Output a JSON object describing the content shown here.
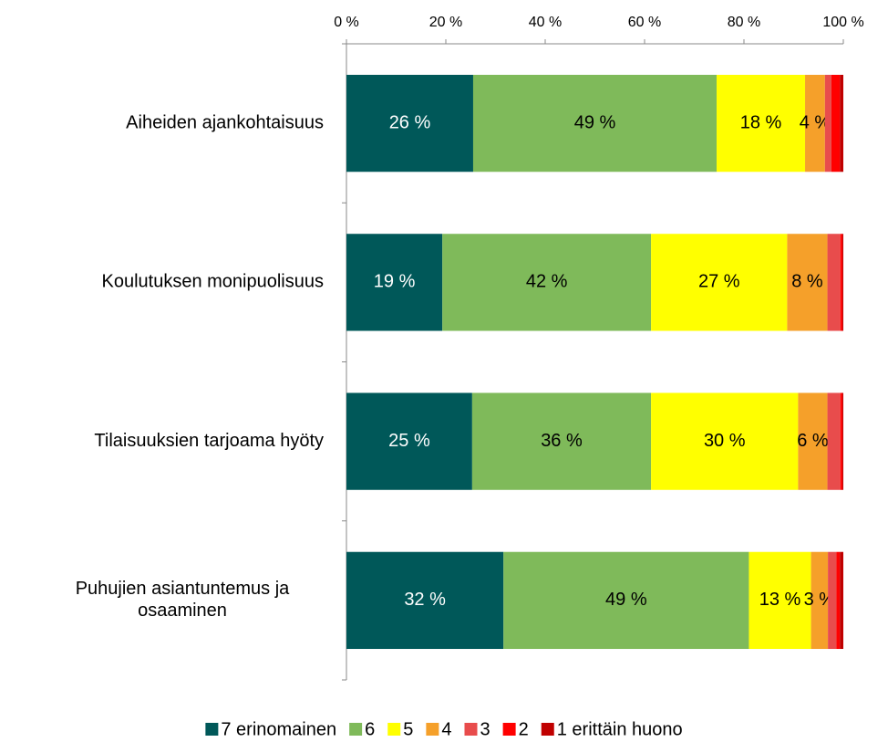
{
  "chart_data": {
    "type": "stacked_barh",
    "categories": [
      "Aiheiden ajankohtaisuus",
      "Koulutuksen monipuolisuus",
      "Tilaisuuksien tarjoama hyöty",
      "Puhujien asiantuntemus ja osaaminen"
    ],
    "series": [
      {
        "name": "7 erinomainen",
        "color": "#005859",
        "values": [
          25.5,
          19.3,
          25.3,
          31.6
        ],
        "value_labels": [
          "26 %",
          "19 %",
          "25 %",
          "32 %"
        ]
      },
      {
        "name": "6",
        "color": "#7fba5a",
        "values": [
          49.0,
          42.0,
          36.0,
          49.4
        ],
        "value_labels": [
          "49 %",
          "42 %",
          "36 %",
          "49 %"
        ]
      },
      {
        "name": "5",
        "color": "#ffff00",
        "values": [
          17.8,
          27.4,
          29.6,
          12.5
        ],
        "value_labels": [
          "18 %",
          "27 %",
          "30 %",
          "13 %"
        ]
      },
      {
        "name": "4",
        "color": "#f5a02a",
        "values": [
          4.0,
          8.1,
          5.9,
          3.4
        ],
        "value_labels": [
          "4 %",
          "8 %",
          "6 %",
          "3 %"
        ]
      },
      {
        "name": "3",
        "color": "#e84c4c",
        "values": [
          1.3,
          2.6,
          2.6,
          1.7
        ]
      },
      {
        "name": "2",
        "color": "#ff0000",
        "values": [
          1.7,
          0.4,
          0.4,
          0.7
        ]
      },
      {
        "name": "1 erittäin huono",
        "color": "#c00000",
        "values": [
          0.7,
          0.2,
          0.2,
          0.7
        ]
      }
    ],
    "xlim": [
      0,
      100
    ],
    "xticks": [
      {
        "value": 0,
        "label": "0 %"
      },
      {
        "value": 20,
        "label": "20 %"
      },
      {
        "value": 40,
        "label": "40 %"
      },
      {
        "value": 60,
        "label": "60 %"
      },
      {
        "value": 80,
        "label": "80 %"
      },
      {
        "value": 100,
        "label": "100 %"
      }
    ],
    "legend": "bottom"
  }
}
